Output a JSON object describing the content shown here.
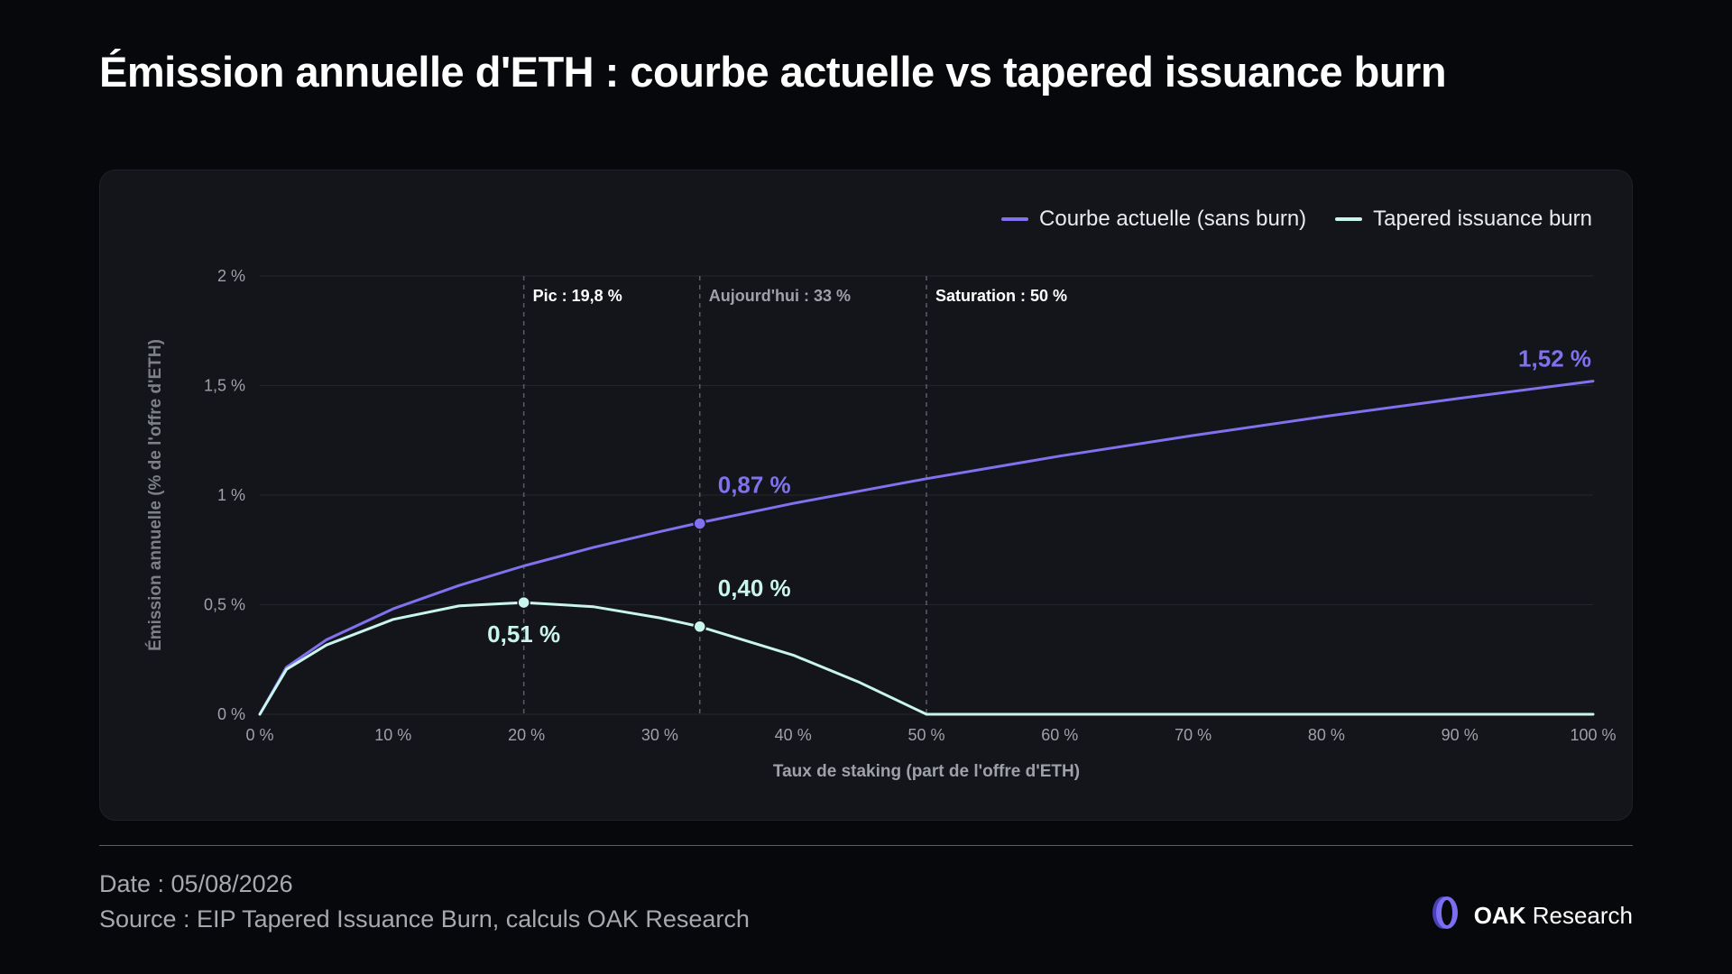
{
  "title": "Émission annuelle d'ETH : courbe actuelle vs tapered issuance burn",
  "footer": {
    "date": "Date : 05/08/2026",
    "source": "Source : EIP Tapered Issuance Burn, calculs OAK Research"
  },
  "brand": {
    "name": "OAK",
    "suffix": "Research",
    "logo_icon": "oak-logo-icon",
    "logo_color": "#7b6ef0"
  },
  "colors": {
    "background": "#07080b",
    "panel": "#14151b",
    "current_curve": "#8071ee",
    "tapered_curve": "#c9f5ec",
    "gridline": "#24262d",
    "marker_line": "#5b5d64"
  },
  "chart_data": {
    "type": "line",
    "xlabel": "Taux de staking (part de l'offre d'ETH)",
    "ylabel": "Émission annuelle (% de l'offre d'ETH)",
    "xlim": [
      0,
      100
    ],
    "ylim": [
      0,
      2
    ],
    "x_ticks": [
      0,
      10,
      20,
      30,
      40,
      50,
      60,
      70,
      80,
      90,
      100
    ],
    "x_tick_labels": [
      "0 %",
      "10 %",
      "20 %",
      "30 %",
      "40 %",
      "50 %",
      "60 %",
      "70 %",
      "80 %",
      "90 %",
      "100 %"
    ],
    "y_ticks": [
      0,
      0.5,
      1,
      1.5,
      2
    ],
    "y_tick_labels": [
      "0 %",
      "0,5 %",
      "1 %",
      "1,5 %",
      "2 %"
    ],
    "grid": true,
    "legend_position": "top-right",
    "series": [
      {
        "name": "Courbe actuelle (sans burn)",
        "color": "#8071ee",
        "x": [
          0,
          2,
          5,
          10,
          15,
          19.8,
          25,
          30,
          33,
          40,
          50,
          60,
          70,
          80,
          90,
          100
        ],
        "y": [
          0,
          0.215,
          0.34,
          0.481,
          0.589,
          0.677,
          0.761,
          0.833,
          0.874,
          0.962,
          1.075,
          1.178,
          1.272,
          1.36,
          1.442,
          1.52
        ]
      },
      {
        "name": "Tapered issuance burn",
        "color": "#c9f5ec",
        "x": [
          0,
          2,
          5,
          10,
          15,
          19.8,
          25,
          30,
          33,
          40,
          45,
          50,
          60,
          70,
          80,
          90,
          100
        ],
        "y": [
          0,
          0.205,
          0.316,
          0.433,
          0.495,
          0.51,
          0.491,
          0.44,
          0.4,
          0.27,
          0.145,
          0,
          0,
          0,
          0,
          0,
          0
        ]
      }
    ],
    "markers": [
      {
        "x": 19.8,
        "label": "Pic : 19,8 %",
        "emphasis": true
      },
      {
        "x": 33,
        "label": "Aujourd'hui : 33 %",
        "emphasis": false
      },
      {
        "x": 50,
        "label": "Saturation : 50 %",
        "emphasis": true
      }
    ],
    "points": [
      {
        "series": 0,
        "x": 33,
        "y": 0.87,
        "label": "0,87 %",
        "placement": "above-right",
        "dot": true
      },
      {
        "series": 1,
        "x": 19.8,
        "y": 0.51,
        "label": "0,51 %",
        "placement": "below",
        "dot": true
      },
      {
        "series": 1,
        "x": 33,
        "y": 0.4,
        "label": "0,40 %",
        "placement": "above-right",
        "dot": true
      },
      {
        "series": 0,
        "x": 100,
        "y": 1.52,
        "label": "1,52 %",
        "placement": "above-left",
        "dot": false
      }
    ]
  }
}
